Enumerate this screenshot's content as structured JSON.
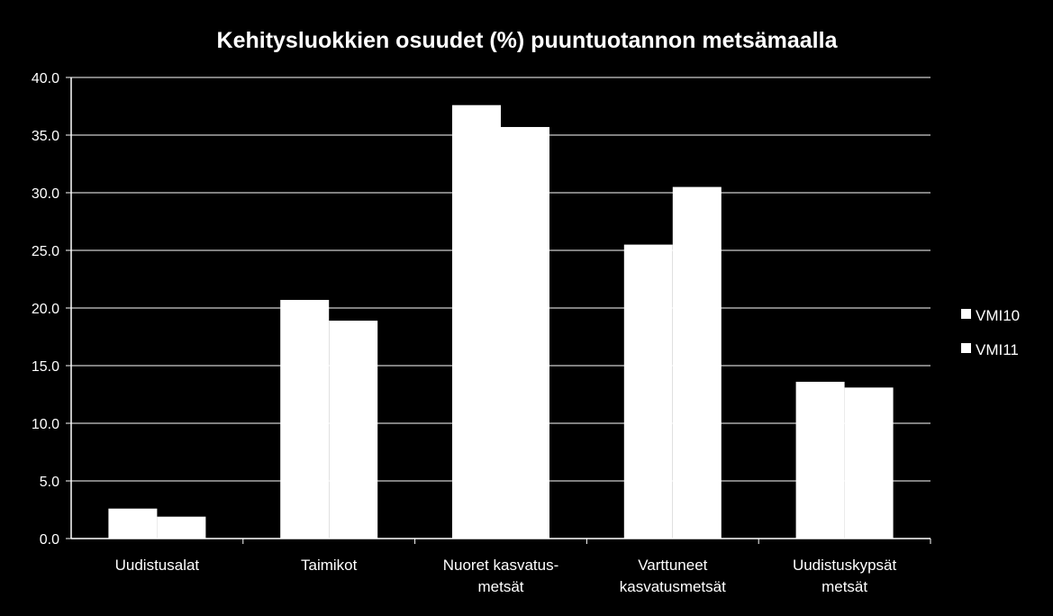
{
  "chart_data": {
    "type": "bar",
    "title": "Kehitysluokkien osuudet (%) puuntuotannon metsämaalla",
    "xlabel": "",
    "ylabel": "",
    "ylim": [
      0,
      40
    ],
    "y_ticks": [
      "0.0",
      "5.0",
      "10.0",
      "15.0",
      "20.0",
      "25.0",
      "30.0",
      "35.0",
      "40.0"
    ],
    "grid": true,
    "legend_position": "right",
    "categories": [
      [
        "Uudistusalat"
      ],
      [
        "Taimikot"
      ],
      [
        "Nuoret kasvatus-",
        "metsät"
      ],
      [
        "Varttuneet",
        "kasvatusmetsät"
      ],
      [
        "Uudistuskypsät",
        "metsät"
      ]
    ],
    "series": [
      {
        "name": "VMI10",
        "values": [
          2.6,
          20.7,
          37.6,
          25.5,
          13.6
        ],
        "color": "#ffffff"
      },
      {
        "name": "VMI11",
        "values": [
          1.9,
          18.9,
          35.7,
          30.5,
          13.1
        ],
        "color": "#ffffff"
      }
    ],
    "colors": {
      "background": "#000000",
      "axis": "#ffffff",
      "grid": "#ffffff",
      "text": "#ffffff"
    }
  }
}
